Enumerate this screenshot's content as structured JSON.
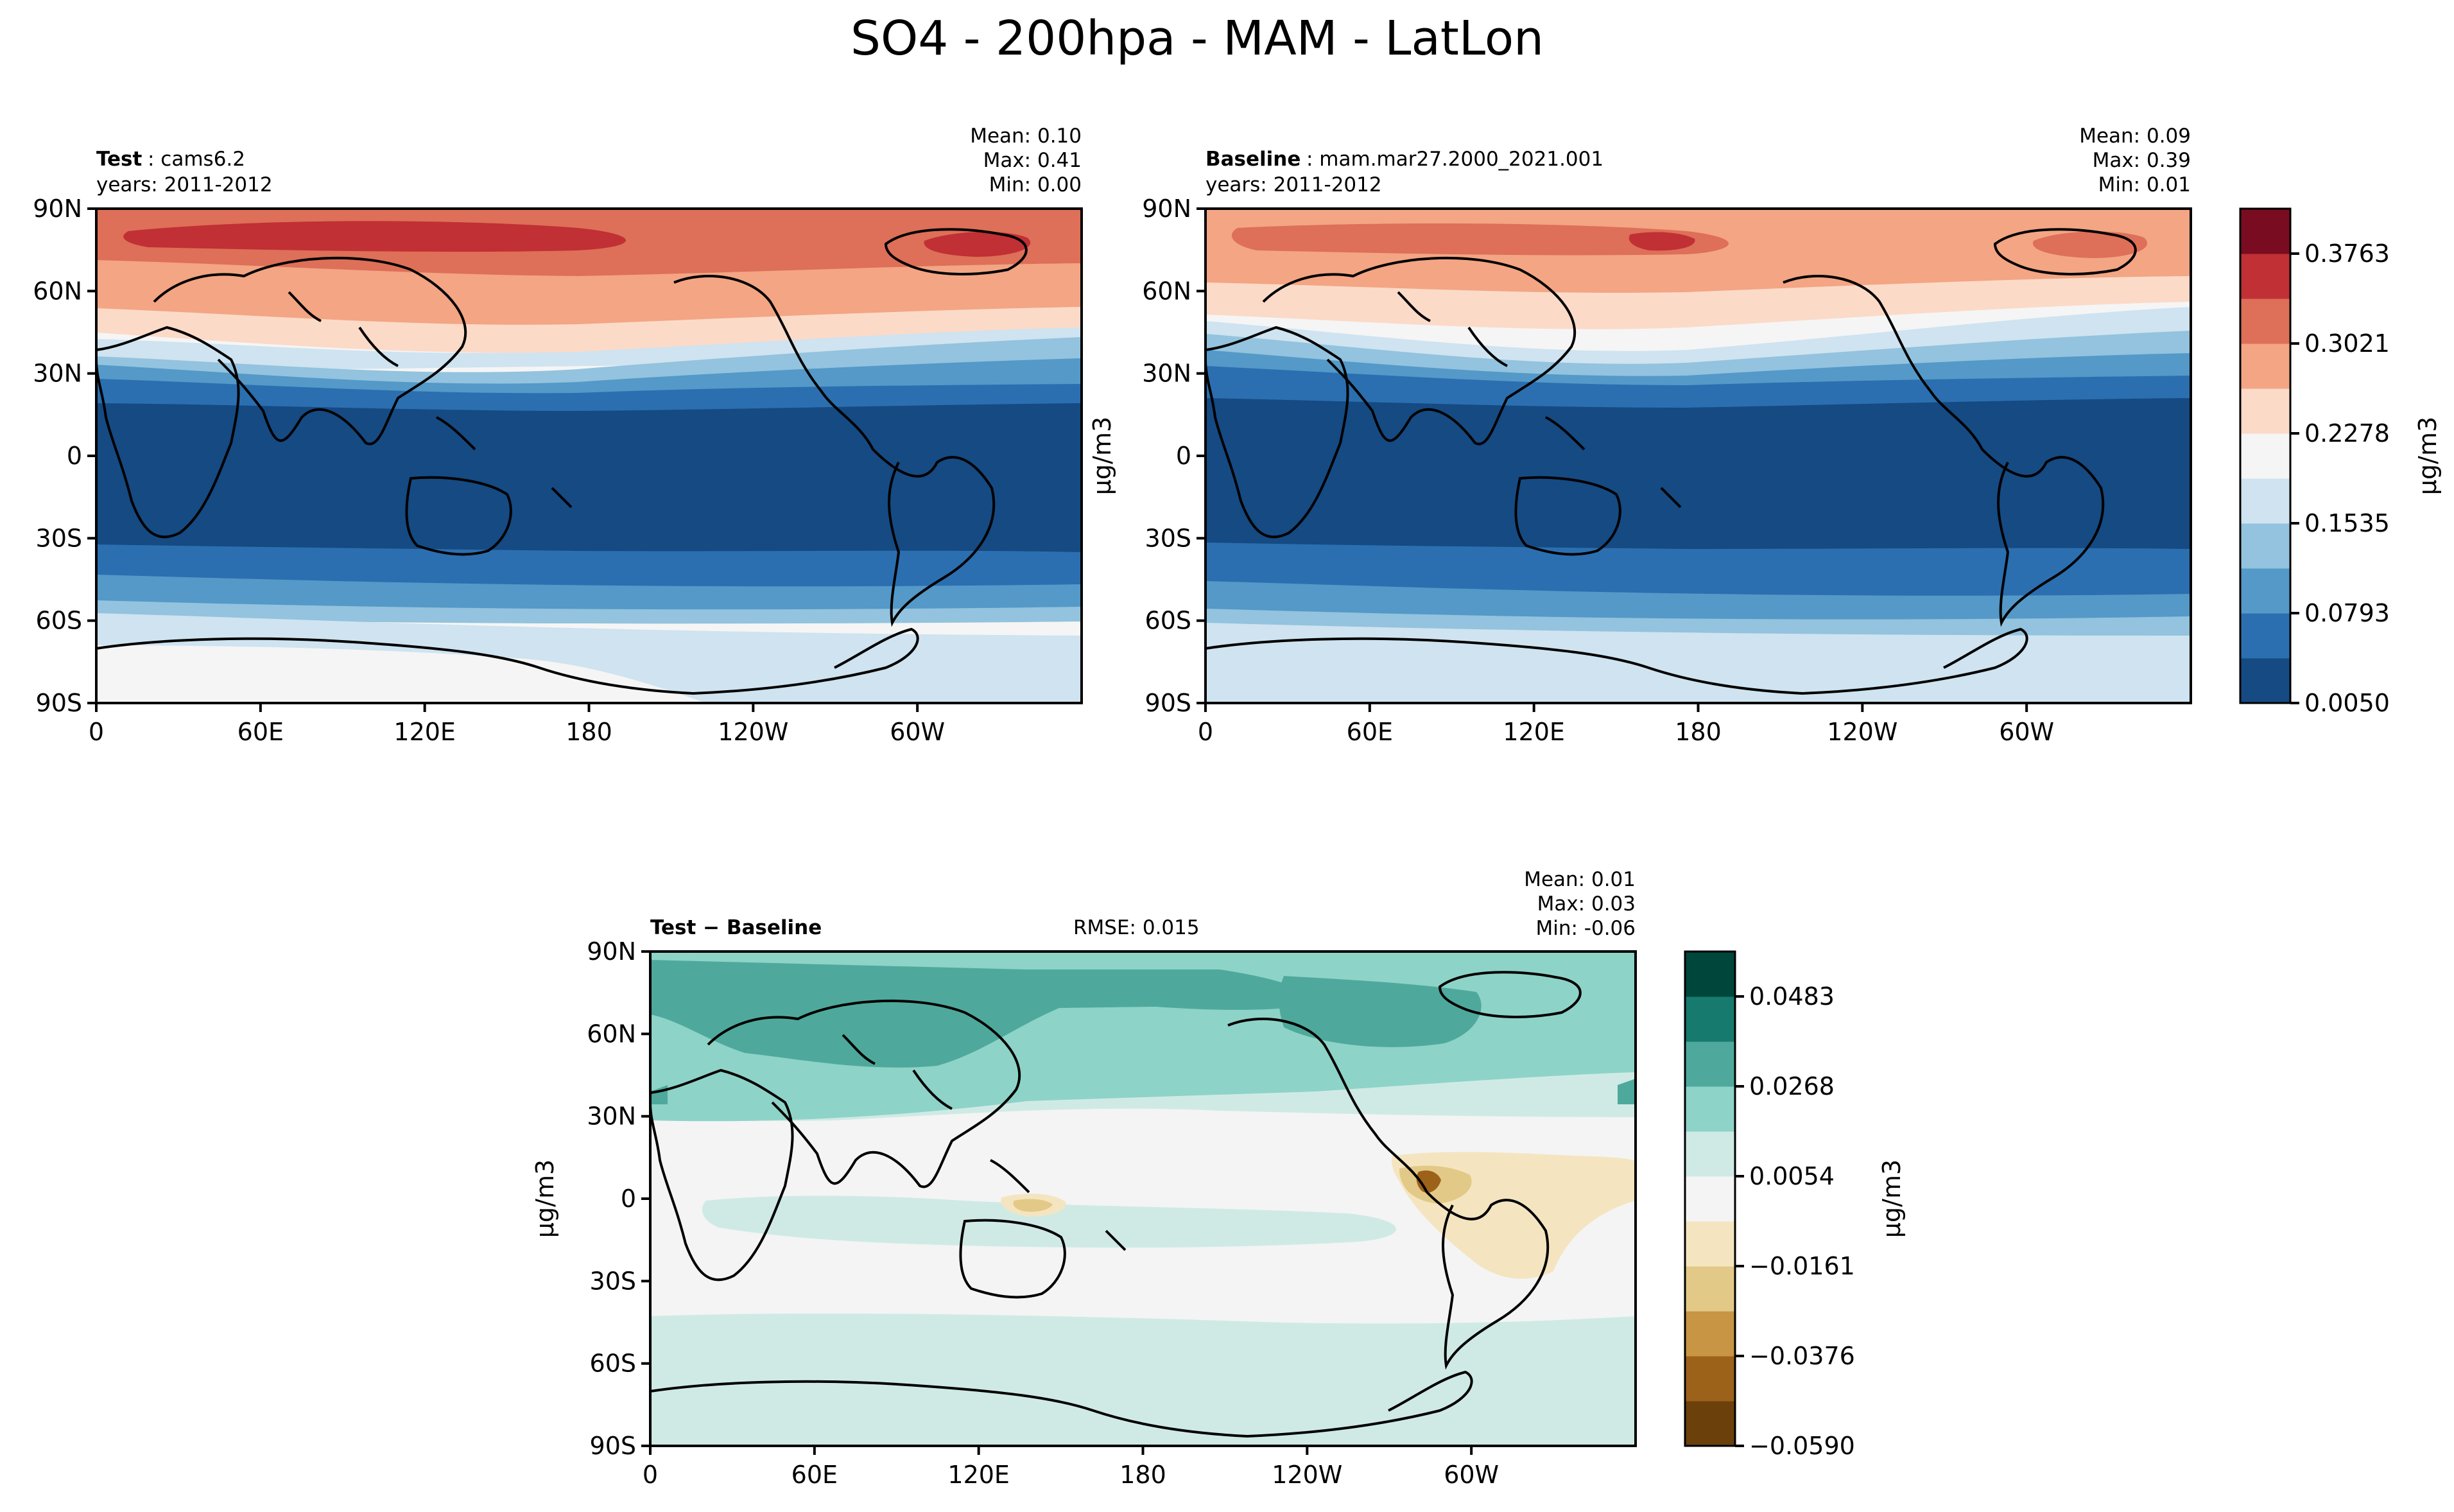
{
  "figure_title": "SO4 - 200hpa - MAM - LatLon",
  "chart_data": [
    {
      "type": "heatmap",
      "panel": "test",
      "label_bold": "Test",
      "label_text": ": cams6.2",
      "years": "years: 2011-2012",
      "stats": {
        "mean": "Mean:  0.10",
        "max": "Max:  0.41",
        "min": "Min:  0.00"
      },
      "xticks": [
        "0",
        "60E",
        "120E",
        "180",
        "120W",
        "60W"
      ],
      "yticks": [
        "90N",
        "60N",
        "30N",
        "0",
        "30S",
        "60S",
        "90S"
      ],
      "ylabel": "",
      "zonal_mean_by_lat": [
        [
          90,
          0.33
        ],
        [
          80,
          0.35
        ],
        [
          70,
          0.31
        ],
        [
          60,
          0.25
        ],
        [
          50,
          0.21
        ],
        [
          40,
          0.16
        ],
        [
          30,
          0.1
        ],
        [
          20,
          0.045
        ],
        [
          10,
          0.02
        ],
        [
          0,
          0.015
        ],
        [
          -10,
          0.015
        ],
        [
          -20,
          0.02
        ],
        [
          -30,
          0.035
        ],
        [
          -40,
          0.07
        ],
        [
          -50,
          0.11
        ],
        [
          -60,
          0.145
        ],
        [
          -70,
          0.17
        ],
        [
          -80,
          0.19
        ],
        [
          -90,
          0.2
        ]
      ]
    },
    {
      "type": "heatmap",
      "panel": "baseline",
      "label_bold": "Baseline",
      "label_text": ": mam.mar27.2000_2021.001",
      "years": "years: 2011-2012",
      "stats": {
        "mean": "Mean:  0.09",
        "max": "Max:  0.39",
        "min": "Min:  0.01"
      },
      "xticks": [
        "0",
        "60E",
        "120E",
        "180",
        "120W",
        "60W"
      ],
      "yticks": [
        "90N",
        "60N",
        "30N",
        "0",
        "30S",
        "60S",
        "90S"
      ],
      "ylabel": "μg/m3",
      "zonal_mean_by_lat": [
        [
          90,
          0.3
        ],
        [
          80,
          0.31
        ],
        [
          70,
          0.27
        ],
        [
          60,
          0.22
        ],
        [
          50,
          0.19
        ],
        [
          40,
          0.14
        ],
        [
          30,
          0.09
        ],
        [
          20,
          0.04
        ],
        [
          10,
          0.018
        ],
        [
          0,
          0.014
        ],
        [
          -10,
          0.014
        ],
        [
          -20,
          0.018
        ],
        [
          -30,
          0.03
        ],
        [
          -40,
          0.06
        ],
        [
          -50,
          0.095
        ],
        [
          -60,
          0.12
        ],
        [
          -70,
          0.15
        ],
        [
          -80,
          0.16
        ],
        [
          -90,
          0.16
        ]
      ],
      "colorbar": {
        "ticks": [
          "0.3763",
          "0.3021",
          "0.2278",
          "0.1535",
          "0.0793",
          "0.0050"
        ],
        "label": "μg/m3",
        "colors": [
          "#154a83",
          "#2b6fb0",
          "#5499c8",
          "#93c3de",
          "#cfe3f0",
          "#f5f5f5",
          "#fcdac8",
          "#f3a584",
          "#de6f58",
          "#c03034",
          "#7a0c22"
        ]
      }
    },
    {
      "type": "heatmap",
      "panel": "difference",
      "label_bold": "Test − Baseline",
      "rmse": "RMSE: 0.015",
      "stats": {
        "mean": "Mean:  0.01",
        "max": "Max:  0.03",
        "min": "Min: -0.06"
      },
      "xticks": [
        "0",
        "60E",
        "120E",
        "180",
        "120W",
        "60W"
      ],
      "yticks": [
        "90N",
        "60N",
        "30N",
        "0",
        "30S",
        "60S",
        "90S"
      ],
      "ylabel": "μg/m3",
      "zonal_mean_by_lat": [
        [
          90,
          0.022
        ],
        [
          70,
          0.024
        ],
        [
          50,
          0.022
        ],
        [
          30,
          0.014
        ],
        [
          15,
          0.006
        ],
        [
          0,
          0.004
        ],
        [
          -15,
          0.005
        ],
        [
          -30,
          0.004
        ],
        [
          -45,
          0.008
        ],
        [
          -60,
          0.008
        ],
        [
          -90,
          0.008
        ]
      ],
      "colorbar": {
        "ticks": [
          "0.0483",
          "0.0268",
          "0.0054",
          "−0.0161",
          "−0.0376",
          "−0.0590"
        ],
        "label": "μg/m3",
        "colors": [
          "#6b400b",
          "#9c621a",
          "#c79543",
          "#e3c987",
          "#f4e5c0",
          "#f4f4f4",
          "#cfeae5",
          "#8ed3c8",
          "#4ea99c",
          "#167a6f",
          "#00463a"
        ]
      }
    }
  ]
}
